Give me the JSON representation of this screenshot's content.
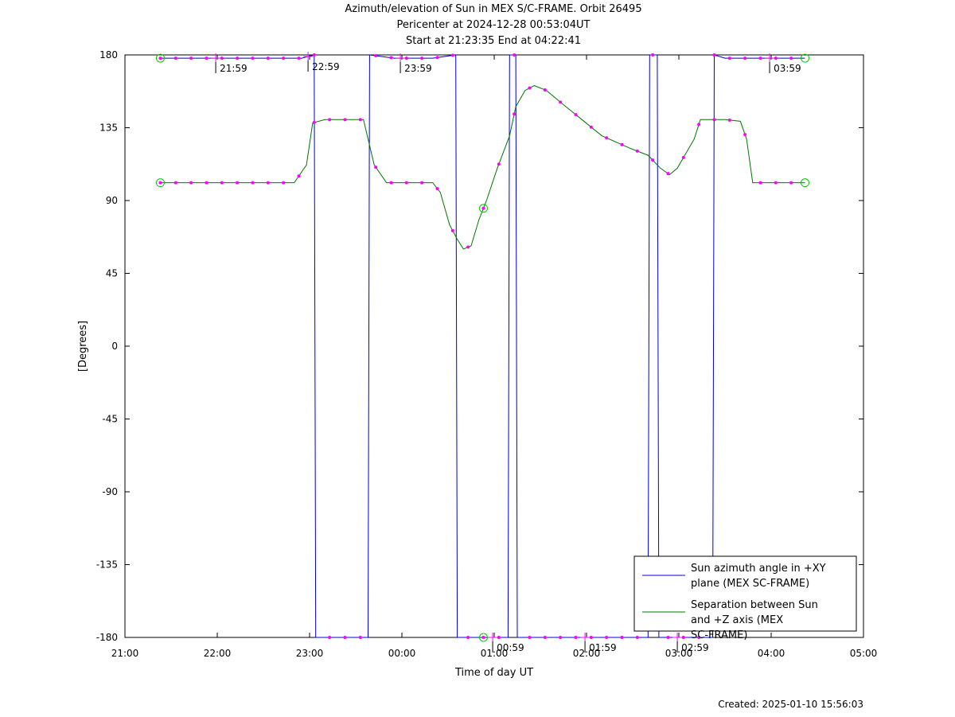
{
  "header": {
    "title_line1": "Azimuth/elevation of Sun in MEX S/C-FRAME.  Orbit 26495",
    "title_line2": "Pericenter at 2024-12-28 00:53:04UT",
    "title_line3": "Start at 21:23:35 End at 04:22:41"
  },
  "footer": {
    "created": "Created: 2025-01-10 15:56:03"
  },
  "colors": {
    "azimuth": "#0000cc",
    "separation": "#007700",
    "marker": "#ff00ff",
    "circle": "#00cc00"
  },
  "chart_data": {
    "type": "line",
    "title": "Azimuth/elevation of Sun in MEX S/C-FRAME.  Orbit 26495",
    "xlabel": "Time of day UT",
    "ylabel": "[Degrees]",
    "xlim": [
      "21:00",
      "05:00"
    ],
    "ylim": [
      -180,
      180
    ],
    "x_ticks": [
      "21:00",
      "22:00",
      "23:00",
      "00:00",
      "01:00",
      "02:00",
      "03:00",
      "04:00",
      "05:00"
    ],
    "y_ticks": [
      180,
      135,
      90,
      45,
      0,
      -45,
      -90,
      -135,
      -180
    ],
    "legend_position": "bottom-right",
    "hour_markers": [
      {
        "time": "21:59",
        "label": "21:59"
      },
      {
        "time": "22:59",
        "label": "22:59"
      },
      {
        "time": "23:59",
        "label": "23:59"
      },
      {
        "time": "00:59",
        "label": "00:59"
      },
      {
        "time": "01:59",
        "label": "01:59"
      },
      {
        "time": "02:59",
        "label": "02:59"
      },
      {
        "time": "03:59",
        "label": "03:59"
      }
    ],
    "series": [
      {
        "name": "Sun azimuth angle in +XY plane (MEX SC-FRAME)",
        "color": "#0000cc",
        "points": [
          [
            "21:23",
            178
          ],
          [
            "22:10",
            178
          ],
          [
            "22:55",
            178
          ],
          [
            "23:03",
            180
          ],
          [
            "23:04",
            -180
          ],
          [
            "23:38",
            -180
          ],
          [
            "23:39",
            180
          ],
          [
            "23:55",
            178
          ],
          [
            "00:20",
            178
          ],
          [
            "00:35",
            180
          ],
          [
            "00:36",
            -180
          ],
          [
            "01:09",
            -180
          ],
          [
            "01:10",
            180
          ],
          [
            "01:14",
            180
          ],
          [
            "01:15",
            -180
          ],
          [
            "02:40",
            -180
          ],
          [
            "02:41",
            180
          ],
          [
            "02:46",
            180
          ],
          [
            "02:47",
            -180
          ],
          [
            "03:22",
            -180
          ],
          [
            "03:23",
            180
          ],
          [
            "03:30",
            178
          ],
          [
            "04:22",
            178
          ]
        ]
      },
      {
        "name": "Separation between Sun and +Z axis (MEX SC-FRAME)",
        "color": "#007700",
        "points": [
          [
            "21:23",
            101
          ],
          [
            "22:00",
            101
          ],
          [
            "22:50",
            101
          ],
          [
            "22:58",
            112
          ],
          [
            "23:02",
            138
          ],
          [
            "23:10",
            140
          ],
          [
            "23:35",
            140
          ],
          [
            "23:42",
            112
          ],
          [
            "23:50",
            101
          ],
          [
            "00:20",
            101
          ],
          [
            "00:25",
            95
          ],
          [
            "00:31",
            75
          ],
          [
            "00:36",
            66
          ],
          [
            "00:40",
            60
          ],
          [
            "00:45",
            62
          ],
          [
            "00:50",
            78
          ],
          [
            "00:55",
            90
          ],
          [
            "01:02",
            110
          ],
          [
            "01:10",
            130
          ],
          [
            "01:14",
            148
          ],
          [
            "01:20",
            158
          ],
          [
            "01:26",
            161
          ],
          [
            "01:34",
            158
          ],
          [
            "01:44",
            150
          ],
          [
            "01:57",
            140
          ],
          [
            "02:10",
            130
          ],
          [
            "02:29",
            122
          ],
          [
            "02:40",
            118
          ],
          [
            "02:48",
            110
          ],
          [
            "02:54",
            106
          ],
          [
            "02:59",
            110
          ],
          [
            "03:10",
            128
          ],
          [
            "03:14",
            140
          ],
          [
            "03:30",
            140
          ],
          [
            "03:40",
            139
          ],
          [
            "03:44",
            128
          ],
          [
            "03:48",
            101
          ],
          [
            "04:22",
            101
          ]
        ]
      }
    ]
  }
}
